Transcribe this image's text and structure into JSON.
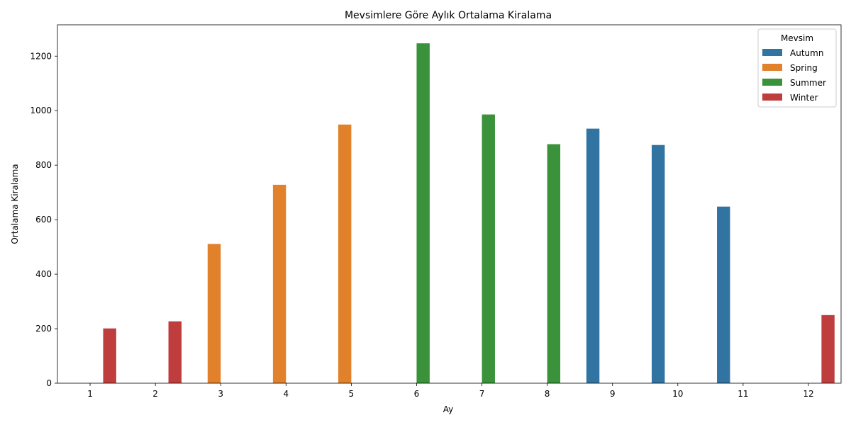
{
  "chart_data": {
    "type": "bar",
    "title": "Mevsimlere Göre Aylık Ortalama Kiralama",
    "xlabel": "Ay",
    "ylabel": "Ortalama Kiralama",
    "categories": [
      "1",
      "2",
      "3",
      "4",
      "5",
      "6",
      "7",
      "8",
      "9",
      "10",
      "11",
      "12"
    ],
    "ylim": [
      0,
      1315
    ],
    "yticks": [
      0,
      200,
      400,
      600,
      800,
      1000,
      1200
    ],
    "grid": false,
    "legend": {
      "title": "Mevsim",
      "placement": "top-right"
    },
    "series": [
      {
        "name": "Autumn",
        "color": "#3274a1",
        "values": [
          null,
          null,
          null,
          null,
          null,
          null,
          null,
          null,
          934,
          874,
          648,
          null
        ]
      },
      {
        "name": "Spring",
        "color": "#e1812c",
        "values": [
          null,
          null,
          511,
          728,
          949,
          null,
          null,
          null,
          null,
          null,
          null,
          null
        ]
      },
      {
        "name": "Summer",
        "color": "#3a923a",
        "values": [
          null,
          null,
          null,
          null,
          null,
          1247,
          986,
          877,
          null,
          null,
          null,
          null
        ]
      },
      {
        "name": "Winter",
        "color": "#c03d3e",
        "values": [
          201,
          227,
          null,
          null,
          null,
          null,
          null,
          null,
          null,
          null,
          null,
          250
        ]
      }
    ]
  }
}
